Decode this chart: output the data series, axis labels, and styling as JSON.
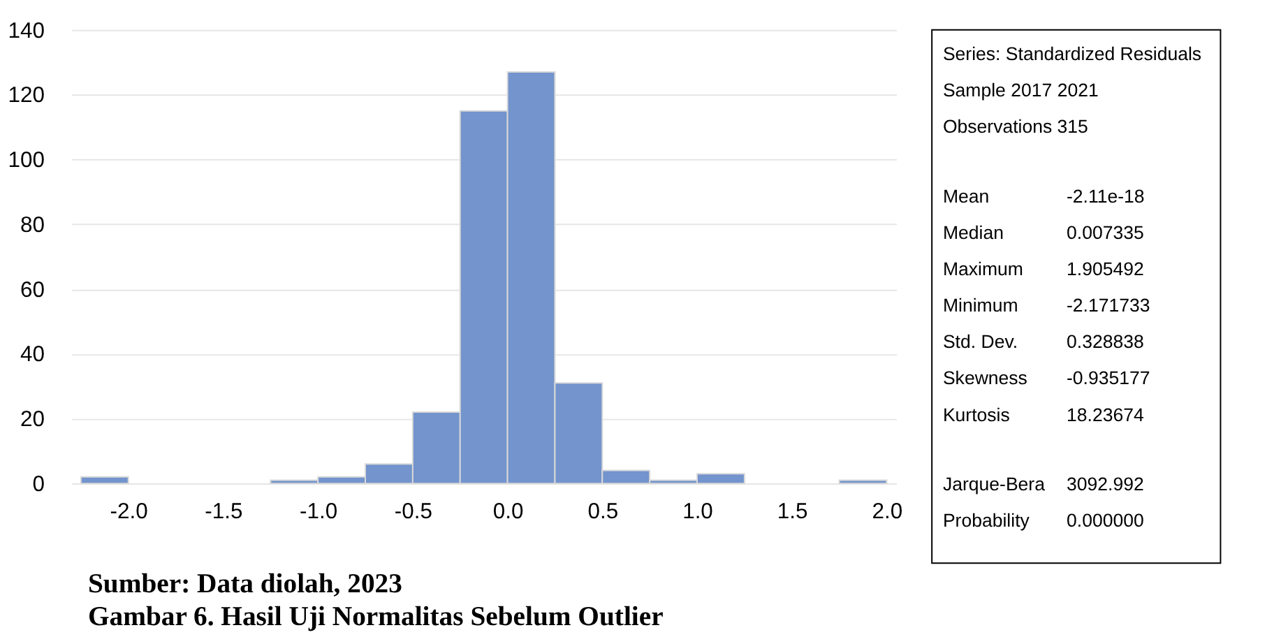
{
  "chart_data": {
    "type": "histogram",
    "title": "Gambar 6. Hasil Uji Normalitas Sebelum Outlier",
    "bins": [
      -2.25,
      -2.0,
      -1.75,
      -1.5,
      -1.25,
      -1.0,
      -0.75,
      -0.5,
      -0.25,
      0.0,
      0.25,
      0.5,
      0.75,
      1.0,
      1.25,
      1.5,
      1.75,
      2.0
    ],
    "values": [
      2,
      0,
      0,
      0,
      1,
      2,
      6,
      22,
      115,
      127,
      31,
      4,
      1,
      3,
      0,
      0,
      1
    ],
    "color": "#7394cc",
    "xlim": [
      -2.3,
      2.05
    ],
    "xticks": [
      {
        "value": -2.0,
        "label": "-2.0"
      },
      {
        "value": -1.5,
        "label": "-1.5"
      },
      {
        "value": -1.0,
        "label": "-1.0"
      },
      {
        "value": -0.5,
        "label": "-0.5"
      },
      {
        "value": 0.0,
        "label": "0.0"
      },
      {
        "value": 0.5,
        "label": "0.5"
      },
      {
        "value": 1.0,
        "label": "1.0"
      },
      {
        "value": 1.5,
        "label": "1.5"
      },
      {
        "value": 2.0,
        "label": "2.0"
      }
    ],
    "ylim": [
      0,
      140
    ],
    "yticks": [
      0,
      20,
      40,
      60,
      80,
      100,
      120,
      140
    ],
    "grid": "y",
    "annotations": [
      "Series: Standardized Residuals",
      "Sample 2017 2021",
      "Observations 315",
      "Mean -2.11e-18",
      "Median 0.007335",
      "Maximum 1.905492",
      "Minimum -2.171733",
      "Std. Dev. 0.328838",
      "Skewness -0.935177",
      "Kurtosis 18.23674",
      "Jarque-Bera 3092.992",
      "Probability 0.000000",
      "Sumber: Data diolah, 2023"
    ]
  }
}
